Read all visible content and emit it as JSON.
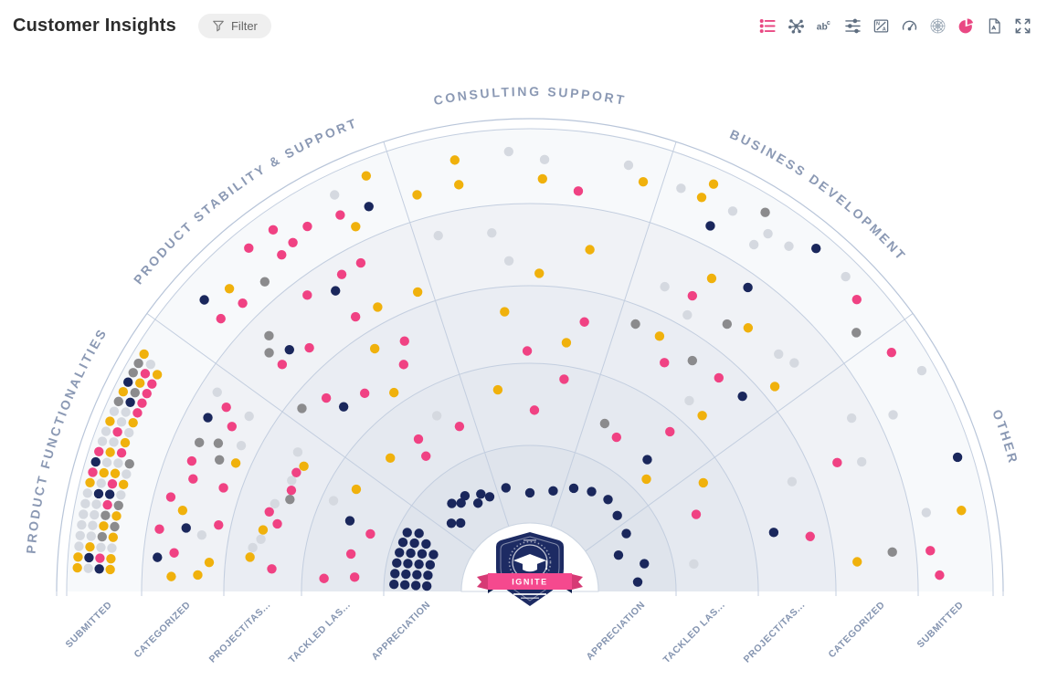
{
  "header": {
    "title": "Customer Insights",
    "filter_label": "Filter"
  },
  "toolbar": {
    "icons": [
      {
        "name": "list-view-icon",
        "color": "#e94883"
      },
      {
        "name": "cluster-icon",
        "color": "#5f6e80"
      },
      {
        "name": "labels-abc-icon",
        "color": "#5f6e80"
      },
      {
        "name": "settings-sliders-icon",
        "color": "#5f6e80"
      },
      {
        "name": "na-values-icon",
        "color": "#5f6e80"
      },
      {
        "name": "gauge-icon",
        "color": "#5f6e80"
      },
      {
        "name": "radar-icon",
        "color": "#9aa7b5"
      },
      {
        "name": "pie-chart-icon",
        "color": "#e94883"
      },
      {
        "name": "export-pdf-icon",
        "color": "#5f6e80"
      },
      {
        "name": "fullscreen-icon",
        "color": "#5f6e80"
      }
    ]
  },
  "badge": {
    "label": "IGNITE"
  },
  "colors": {
    "accent_pink": "#e94883",
    "grid": "#c3cedf",
    "outline": "#b8c5d9",
    "sector_title": "#8b99b4",
    "axis_label": "#8494b0"
  },
  "chart_data": {
    "type": "radial-dot-plot",
    "title": "Customer Insights",
    "orientation": "upper-semicircle",
    "legend": "none",
    "dot_colors": {
      "navy": "#1a275c",
      "pink": "#f04283",
      "gold": "#f0b10c",
      "gray": "#8b8b8d",
      "lightgray": "#d5d9e0"
    },
    "sectors": [
      {
        "label": "PRODUCT FUNCTIONALITIES",
        "a0": 144,
        "a1": 180
      },
      {
        "label": "PRODUCT STABILITY & SUPPORT",
        "a0": 108,
        "a1": 144
      },
      {
        "label": "CONSULTING SUPPORT",
        "a0": 72,
        "a1": 108
      },
      {
        "label": "BUSINESS DEVELOPMENT",
        "a0": 36,
        "a1": 72
      },
      {
        "label": "OTHER",
        "a0": 0,
        "a1": 36
      }
    ],
    "rings": [
      {
        "label": "APPRECIATION",
        "fill": "#dfe4ec"
      },
      {
        "label": "TACKLED LAS...",
        "fill": "#e5e9f0"
      },
      {
        "label": "PROJECT/TAS...",
        "fill": "#eaedf3"
      },
      {
        "label": "CATEGORIZED",
        "fill": "#f0f2f6"
      },
      {
        "label": "SUBMITTED",
        "fill": "#f7f9fb"
      }
    ],
    "cells": [
      {
        "sector": 0,
        "ring": 4,
        "layout": "packed",
        "counts": {
          "lightgray": 26,
          "gold": 20,
          "pink": 12,
          "gray": 9,
          "navy": 7
        }
      },
      {
        "sector": 0,
        "ring": 3,
        "layout": "scatter",
        "counts": {
          "pink": 9,
          "gold": 5,
          "lightgray": 4,
          "navy": 3,
          "gray": 3
        }
      },
      {
        "sector": 0,
        "ring": 2,
        "layout": "arc",
        "counts": {
          "lightgray": 5,
          "pink": 5,
          "gold": 3,
          "gray": 1
        }
      },
      {
        "sector": 0,
        "ring": 1,
        "layout": "scatter",
        "counts": {
          "pink": 4,
          "navy": 1,
          "lightgray": 1,
          "gold": 1
        }
      },
      {
        "sector": 0,
        "ring": 0,
        "layout": "packed",
        "counts": {
          "navy": 21
        }
      },
      {
        "sector": 1,
        "ring": 4,
        "layout": "scatter",
        "counts": {
          "pink": 8,
          "gold": 3,
          "navy": 2,
          "gray": 1,
          "lightgray": 1
        }
      },
      {
        "sector": 1,
        "ring": 3,
        "layout": "scatter",
        "counts": {
          "pink": 6,
          "gold": 2,
          "navy": 2,
          "gray": 2
        }
      },
      {
        "sector": 1,
        "ring": 2,
        "layout": "scatter",
        "counts": {
          "pink": 4,
          "gold": 2,
          "navy": 1,
          "gray": 1
        }
      },
      {
        "sector": 1,
        "ring": 1,
        "layout": "scatter",
        "counts": {
          "pink": 3,
          "gold": 1,
          "lightgray": 1
        }
      },
      {
        "sector": 1,
        "ring": 0,
        "layout": "arc",
        "counts": {
          "navy": 8
        }
      },
      {
        "sector": 2,
        "ring": 4,
        "layout": "scatter",
        "counts": {
          "gold": 5,
          "lightgray": 3,
          "pink": 1
        }
      },
      {
        "sector": 2,
        "ring": 3,
        "layout": "scatter",
        "counts": {
          "lightgray": 3,
          "gold": 2
        }
      },
      {
        "sector": 2,
        "ring": 2,
        "layout": "scatter",
        "counts": {
          "gold": 2,
          "pink": 2
        }
      },
      {
        "sector": 2,
        "ring": 1,
        "layout": "scatter",
        "counts": {
          "pink": 2,
          "gold": 1
        }
      },
      {
        "sector": 2,
        "ring": 0,
        "layout": "arc",
        "counts": {
          "navy": 3
        }
      },
      {
        "sector": 3,
        "ring": 4,
        "layout": "scatter",
        "counts": {
          "lightgray": 6,
          "navy": 2,
          "gray": 2,
          "gold": 2,
          "pink": 1
        }
      },
      {
        "sector": 3,
        "ring": 3,
        "layout": "scatter",
        "counts": {
          "lightgray": 4,
          "gold": 3,
          "navy": 1,
          "gray": 1,
          "pink": 1
        }
      },
      {
        "sector": 3,
        "ring": 2,
        "layout": "scatter",
        "counts": {
          "gold": 2,
          "pink": 2,
          "gray": 2,
          "navy": 1,
          "lightgray": 1
        }
      },
      {
        "sector": 3,
        "ring": 1,
        "layout": "scatter",
        "counts": {
          "pink": 2,
          "gray": 1,
          "gold": 1,
          "navy": 1
        }
      },
      {
        "sector": 3,
        "ring": 0,
        "layout": "arc",
        "counts": {
          "navy": 4
        }
      },
      {
        "sector": 4,
        "ring": 4,
        "layout": "scatter",
        "counts": {
          "lightgray": 3,
          "pink": 3,
          "gold": 1,
          "navy": 1
        }
      },
      {
        "sector": 4,
        "ring": 3,
        "layout": "scatter",
        "counts": {
          "lightgray": 2,
          "pink": 1,
          "gold": 1,
          "gray": 1
        }
      },
      {
        "sector": 4,
        "ring": 2,
        "layout": "scatter",
        "counts": {
          "lightgray": 1,
          "navy": 1,
          "pink": 1
        }
      },
      {
        "sector": 4,
        "ring": 1,
        "layout": "scatter",
        "counts": {
          "gold": 1,
          "lightgray": 1,
          "pink": 1
        }
      },
      {
        "sector": 4,
        "ring": 0,
        "layout": "arc",
        "counts": {
          "navy": 4
        }
      }
    ]
  }
}
